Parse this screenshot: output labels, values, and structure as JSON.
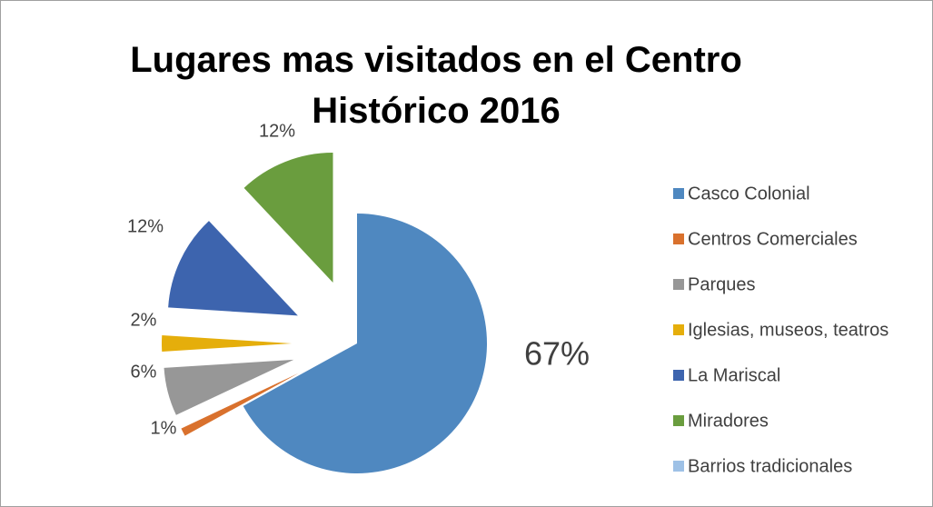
{
  "chart_data": {
    "type": "pie",
    "title": "Lugares mas visitados en el Centro Histórico 2016",
    "categories": [
      "Casco Colonial",
      "Centros Comerciales",
      "Parques",
      "Iglesias, museos, teatros",
      "La Mariscal",
      "Miradores",
      "Barrios tradicionales"
    ],
    "values": [
      67,
      1,
      6,
      2,
      12,
      12,
      0
    ],
    "value_labels": [
      "67%",
      "1%",
      "6%",
      "2%",
      "12%",
      "12%",
      null
    ],
    "colors": [
      "#4f88c0",
      "#d9712d",
      "#979797",
      "#e5ae0b",
      "#3d64ae",
      "#6a9d3e",
      "#9ec1e6"
    ],
    "legend": "right"
  }
}
